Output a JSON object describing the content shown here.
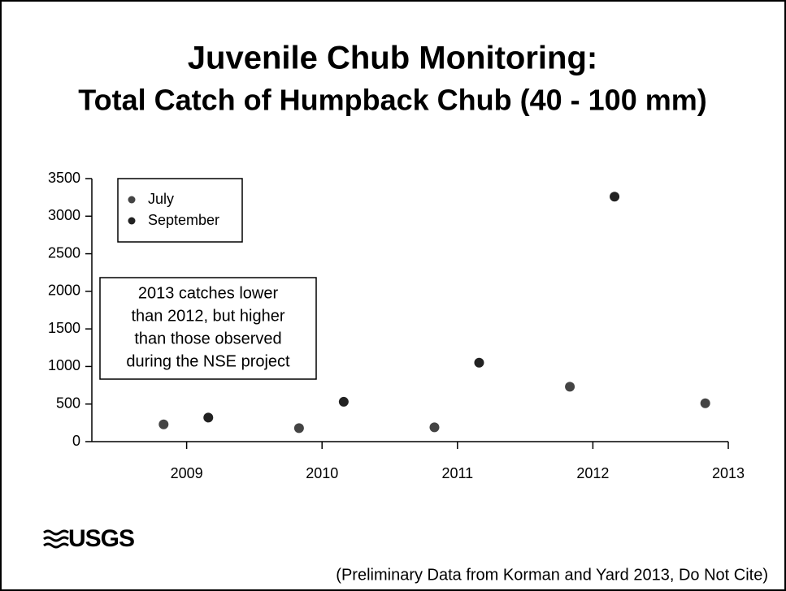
{
  "chart_data": {
    "type": "scatter",
    "title": "Juvenile Chub Monitoring:",
    "subtitle": "Total Catch of Humpback Chub (40 - 100 mm)",
    "series": [
      {
        "name": "July",
        "color": "#444444",
        "x": [
          2008.83,
          2009.83,
          2010.83,
          2011.83,
          2012.83
        ],
        "values": [
          230,
          180,
          190,
          730,
          510
        ]
      },
      {
        "name": "September",
        "color": "#222222",
        "x": [
          2009.16,
          2010.16,
          2011.16,
          2012.16
        ],
        "values": [
          320,
          530,
          1050,
          3260
        ]
      }
    ],
    "xlim": [
      2008.3,
      2013
    ],
    "xticks": [
      2009,
      2010,
      2011,
      2012,
      2013
    ],
    "ylim": [
      0,
      3500
    ],
    "yticks": [
      0,
      500,
      1000,
      1500,
      2000,
      2500,
      3000,
      3500
    ],
    "annotation": [
      "2013 catches lower",
      "than 2012, but higher",
      "than those observed",
      "during the NSE project"
    ],
    "logo": "USGS",
    "footnote": "(Preliminary Data from Korman and Yard 2013, Do Not Cite)"
  }
}
